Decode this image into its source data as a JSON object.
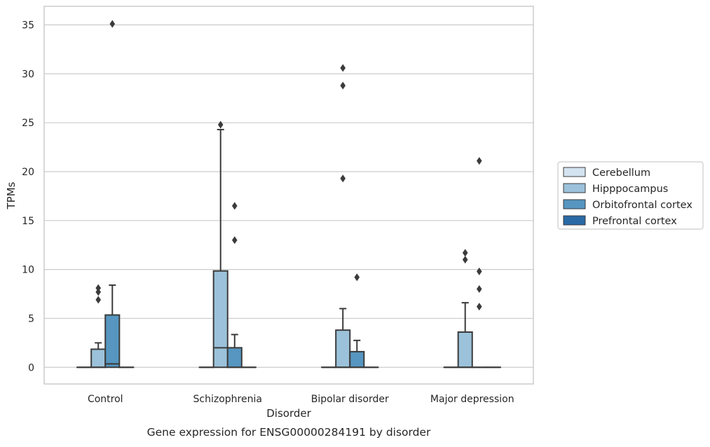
{
  "chart_data": {
    "type": "box",
    "xlabel": "Disorder",
    "ylabel": "TPMs",
    "caption": "Gene expression for ENSG00000284191 by disorder",
    "categories": [
      "Control",
      "Schizophrenia",
      "Bipolar disorder",
      "Major depression"
    ],
    "yticks": [
      0,
      5,
      10,
      15,
      20,
      25,
      30,
      35
    ],
    "ylim": [
      -1.7,
      36.9
    ],
    "grid": "horizontal",
    "legend_position": "right",
    "series": [
      {
        "name": "Cerebellum",
        "color": "#d4e3f0",
        "boxes": [
          {
            "category": "Control",
            "whislo": 0,
            "q1": 0,
            "med": 0,
            "q3": 0,
            "whishi": 0,
            "fliers": []
          },
          {
            "category": "Schizophrenia",
            "whislo": 0,
            "q1": 0,
            "med": 0,
            "q3": 0,
            "whishi": 0,
            "fliers": []
          },
          {
            "category": "Bipolar disorder",
            "whislo": 0,
            "q1": 0,
            "med": 0,
            "q3": 0,
            "whishi": 0,
            "fliers": []
          },
          {
            "category": "Major depression",
            "whislo": 0,
            "q1": 0,
            "med": 0,
            "q3": 0,
            "whishi": 0,
            "fliers": []
          }
        ]
      },
      {
        "name": "Hipppocampus",
        "color": "#9bc2da",
        "boxes": [
          {
            "category": "Control",
            "whislo": 0,
            "q1": 0,
            "med": 0,
            "q3": 1.85,
            "whishi": 2.5,
            "fliers": [
              6.9,
              7.7,
              8.1
            ]
          },
          {
            "category": "Schizophrenia",
            "whislo": 0,
            "q1": 0,
            "med": 2.0,
            "q3": 9.85,
            "whishi": 24.3,
            "fliers": [
              24.8
            ]
          },
          {
            "category": "Bipolar disorder",
            "whislo": 0,
            "q1": 0,
            "med": 0,
            "q3": 3.8,
            "whishi": 6.0,
            "fliers": [
              19.3,
              28.8,
              30.6
            ]
          },
          {
            "category": "Major depression",
            "whislo": 0,
            "q1": 0,
            "med": 0,
            "q3": 3.6,
            "whishi": 6.6,
            "fliers": [
              11.0,
              11.7
            ]
          }
        ]
      },
      {
        "name": "Orbitofrontal cortex",
        "color": "#5696c0",
        "boxes": [
          {
            "category": "Control",
            "whislo": 0,
            "q1": 0,
            "med": 0.35,
            "q3": 5.35,
            "whishi": 8.4,
            "fliers": [
              35.1
            ]
          },
          {
            "category": "Schizophrenia",
            "whislo": 0,
            "q1": 0,
            "med": 0,
            "q3": 2.0,
            "whishi": 3.35,
            "fliers": [
              13.0,
              16.5
            ]
          },
          {
            "category": "Bipolar disorder",
            "whislo": 0,
            "q1": 0,
            "med": 0,
            "q3": 1.6,
            "whishi": 2.75,
            "fliers": [
              9.2
            ]
          },
          {
            "category": "Major depression",
            "whislo": 0,
            "q1": 0,
            "med": 0,
            "q3": 0,
            "whishi": 0,
            "fliers": [
              6.2,
              8.0,
              9.8,
              21.1
            ]
          }
        ]
      },
      {
        "name": "Prefrontal cortex",
        "color": "#2a6aa5",
        "boxes": [
          {
            "category": "Control",
            "whislo": 0,
            "q1": 0,
            "med": 0,
            "q3": 0,
            "whishi": 0,
            "fliers": []
          },
          {
            "category": "Schizophrenia",
            "whislo": 0,
            "q1": 0,
            "med": 0,
            "q3": 0,
            "whishi": 0,
            "fliers": []
          },
          {
            "category": "Bipolar disorder",
            "whislo": 0,
            "q1": 0,
            "med": 0,
            "q3": 0,
            "whishi": 0,
            "fliers": []
          },
          {
            "category": "Major depression",
            "whislo": 0,
            "q1": 0,
            "med": 0,
            "q3": 0,
            "whishi": 0,
            "fliers": []
          }
        ]
      }
    ]
  }
}
